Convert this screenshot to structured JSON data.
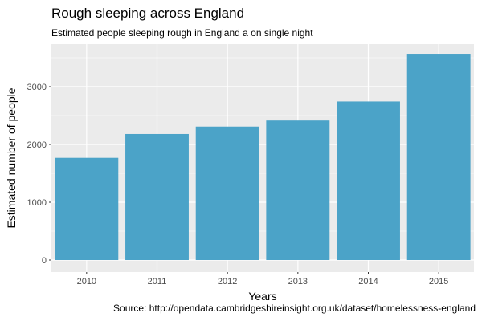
{
  "chart_data": {
    "type": "bar",
    "title": "Rough sleeping across England",
    "subtitle": "Estimated people sleeping rough in England a on single night",
    "caption": "Source: http://opendata.cambridgeshireinsight.org.uk/dataset/homelessness-england",
    "xlabel": "Years",
    "ylabel": "Estimated number of people",
    "categories": [
      "2010",
      "2011",
      "2012",
      "2013",
      "2014",
      "2015"
    ],
    "values": [
      1768,
      2181,
      2309,
      2414,
      2744,
      3569
    ],
    "ylim": [
      0,
      3750
    ],
    "yticks": [
      0,
      1000,
      2000,
      3000
    ],
    "ytick_labels": [
      "0",
      "1000",
      "2000",
      "3000"
    ],
    "grid": true,
    "legend": "none",
    "colors": {
      "bar": "#4ba3c8",
      "panel": "#ebebeb",
      "grid": "#ffffff"
    }
  }
}
